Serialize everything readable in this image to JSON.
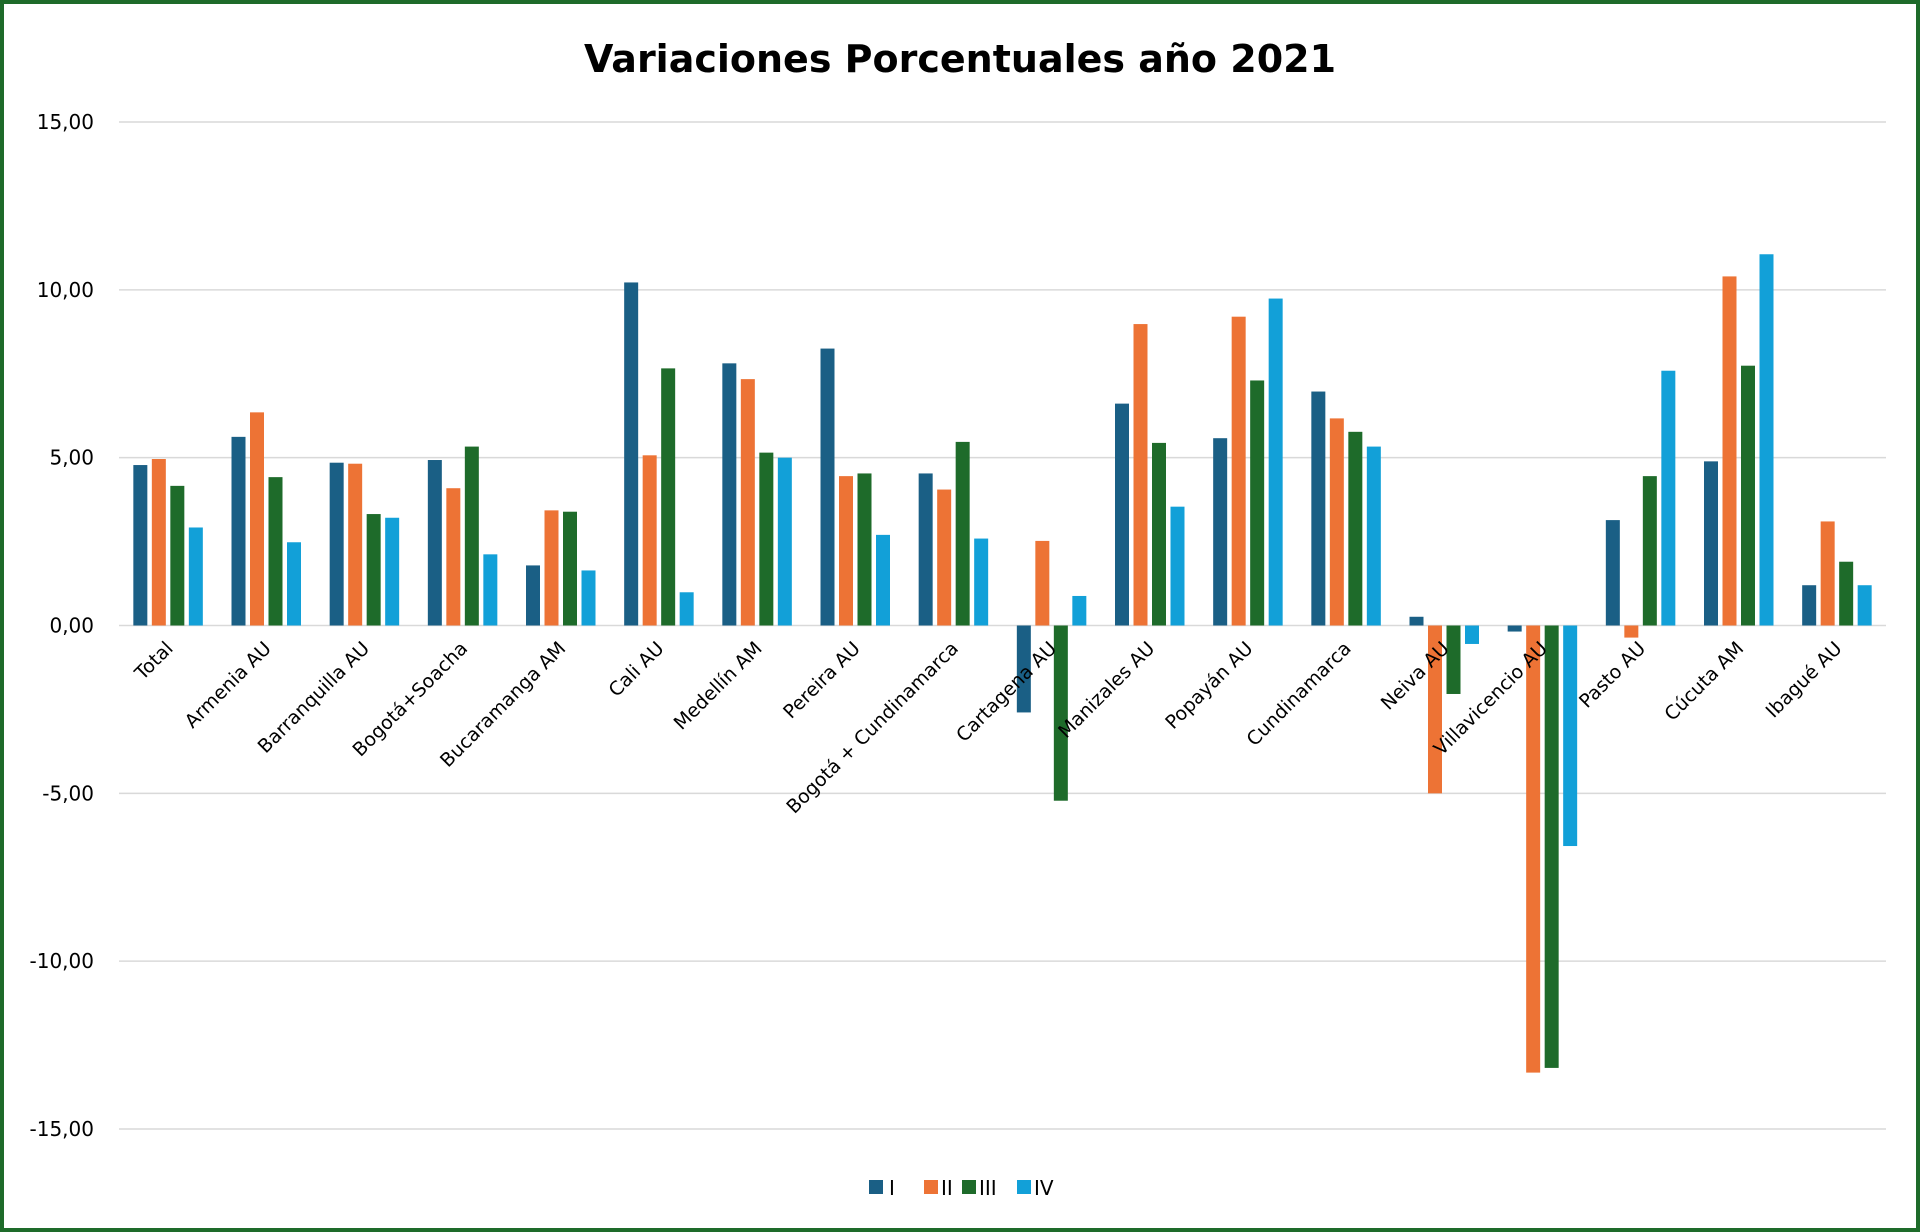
{
  "chart_data": {
    "type": "bar",
    "title": "Variaciones Porcentuales año 2021",
    "xlabel": "",
    "ylabel": "",
    "ylim": [
      -15,
      15
    ],
    "yticks": [
      15,
      10,
      5,
      0,
      -5,
      -10,
      -15
    ],
    "ytick_labels": [
      "15,00",
      "10,00",
      "5,00",
      "0,00",
      "-5,00",
      "-10,00",
      "-15,00"
    ],
    "grid": true,
    "legend_position": "bottom",
    "categories": [
      "Total",
      "Armenia AU",
      "Barranquilla AU",
      "Bogotá+Soacha",
      "Bucaramanga AM",
      "Cali AU",
      "Medellín AM",
      "Pereira AU",
      "Bogotá + Cundinamarca",
      "Cartagena AU",
      "Manizales AU",
      "Popayán AU",
      "Cundinamarca",
      "Neiva AU",
      "Villavicencio AU",
      "Pasto AU",
      "Cúcuta AM",
      "Ibagué AU"
    ],
    "series": [
      {
        "name": "I",
        "color": "#1a5f85",
        "values": [
          4.78,
          5.62,
          4.85,
          4.93,
          1.79,
          10.22,
          7.81,
          8.25,
          4.53,
          -2.59,
          6.61,
          5.58,
          6.97,
          0.26,
          -0.18,
          3.14,
          4.89,
          1.2
        ]
      },
      {
        "name": "II",
        "color": "#ed7335",
        "values": [
          4.96,
          6.35,
          4.82,
          4.09,
          3.43,
          5.07,
          7.34,
          4.45,
          4.05,
          2.52,
          8.98,
          9.2,
          6.17,
          -5.0,
          -13.32,
          -0.36,
          10.4,
          3.1
        ]
      },
      {
        "name": "III",
        "color": "#1e6b2a",
        "values": [
          4.16,
          4.42,
          3.32,
          5.33,
          3.39,
          7.66,
          5.15,
          4.53,
          5.47,
          -5.22,
          5.44,
          7.3,
          5.77,
          -2.04,
          -13.18,
          4.45,
          7.74,
          1.9
        ]
      },
      {
        "name": "IV",
        "color": "#12a0d8",
        "values": [
          2.92,
          2.48,
          3.21,
          2.12,
          1.64,
          0.99,
          5.0,
          2.7,
          2.59,
          0.88,
          3.54,
          9.74,
          5.33,
          -0.55,
          -6.57,
          7.59,
          11.06,
          1.2
        ]
      }
    ]
  }
}
